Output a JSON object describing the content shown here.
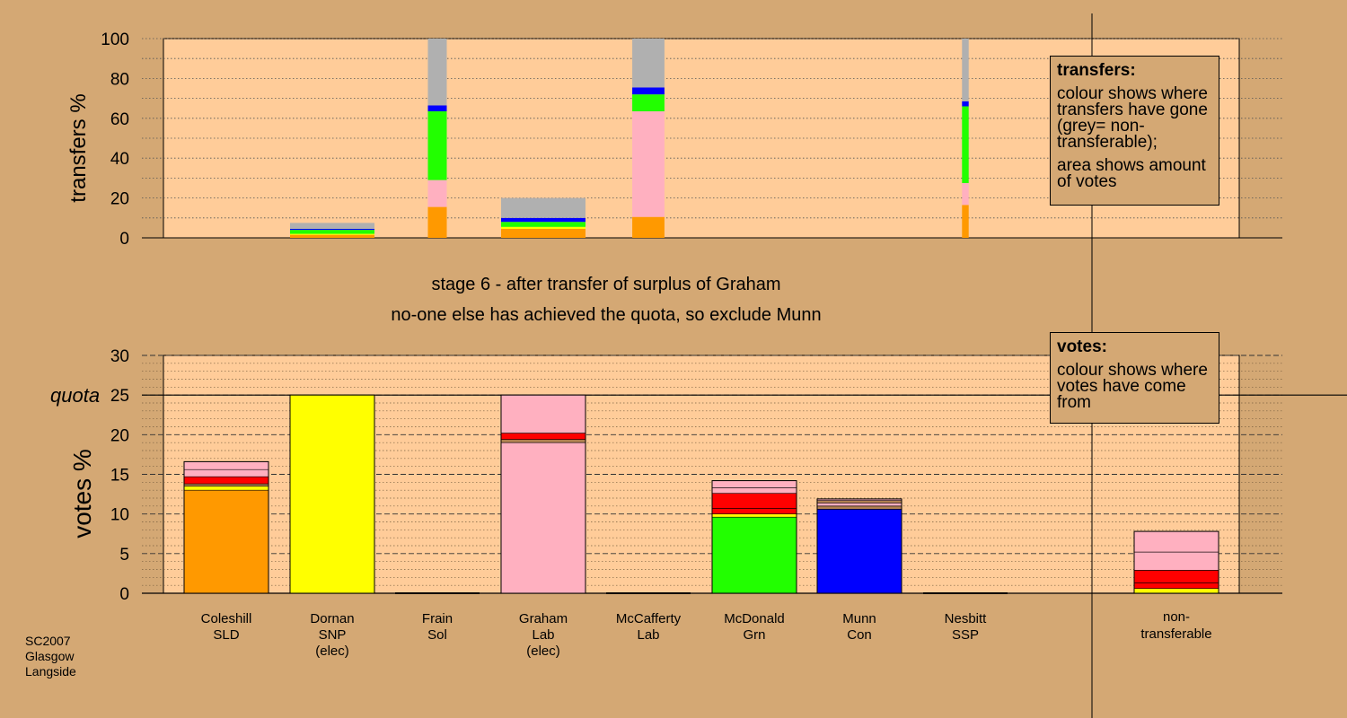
{
  "colors": {
    "background": "#d4a874",
    "plot_area": "#ffcc99",
    "orange": "#ff9900",
    "yellow": "#ffff00",
    "pink": "#ffb0c0",
    "green": "#22ff00",
    "blue": "#0000ff",
    "red": "#ff0000",
    "grey": "#b0b0b0",
    "brown": "#b08050"
  },
  "footer": {
    "line1": "SC2007",
    "line2": "Glasgow",
    "line3": "Langside"
  },
  "stage_title": "stage 6 - after transfer of surplus of Graham",
  "stage_subtitle": "no-one else has achieved the quota, so exclude Munn",
  "legend_transfers": {
    "heading": "transfers:",
    "text1": "colour shows where transfers have gone (grey= non-transferable);",
    "text2": "area shows amount of votes"
  },
  "legend_votes": {
    "heading": "votes:",
    "text1": "colour shows where votes have come from"
  },
  "chart_data": [
    {
      "type": "bar",
      "name": "transfers",
      "ylabel": "transfers %",
      "ylim": [
        0,
        100
      ],
      "yticks": [
        0,
        20,
        40,
        60,
        80,
        100
      ],
      "grid": "dotted",
      "columns": [
        {
          "candidate": "Coleshill",
          "width_pct": 0,
          "segments": []
        },
        {
          "candidate": "Dornan",
          "width_pct": 7.6,
          "segments": [
            {
              "color": "orange",
              "value": 1.5
            },
            {
              "color": "yellow",
              "value": 0.5
            },
            {
              "color": "green",
              "value": 2.0
            },
            {
              "color": "blue",
              "value": 0.5
            },
            {
              "color": "grey",
              "value": 3.0
            }
          ]
        },
        {
          "candidate": "Frain",
          "width_pct": 1.7,
          "segments": [
            {
              "color": "orange",
              "value": 15.5
            },
            {
              "color": "pink",
              "value": 13.5
            },
            {
              "color": "green",
              "value": 34.5
            },
            {
              "color": "blue",
              "value": 3.0
            },
            {
              "color": "grey",
              "value": 33.5
            }
          ]
        },
        {
          "candidate": "Graham",
          "width_pct": 7.6,
          "segments": [
            {
              "color": "orange",
              "value": 4.5
            },
            {
              "color": "yellow",
              "value": 1.0
            },
            {
              "color": "green",
              "value": 2.5
            },
            {
              "color": "blue",
              "value": 2.0
            },
            {
              "color": "grey",
              "value": 10.0
            }
          ]
        },
        {
          "candidate": "McCafferty",
          "width_pct": 2.9,
          "segments": [
            {
              "color": "orange",
              "value": 10.5
            },
            {
              "color": "pink",
              "value": 53.0
            },
            {
              "color": "green",
              "value": 8.5
            },
            {
              "color": "blue",
              "value": 3.5
            },
            {
              "color": "grey",
              "value": 24.5
            }
          ]
        },
        {
          "candidate": "McDonald",
          "width_pct": 0,
          "segments": []
        },
        {
          "candidate": "Munn",
          "width_pct": 0,
          "segments": []
        },
        {
          "candidate": "Nesbitt",
          "width_pct": 0.6,
          "segments": [
            {
              "color": "orange",
              "value": 16.5
            },
            {
              "color": "pink",
              "value": 11.0
            },
            {
              "color": "green",
              "value": 38.5
            },
            {
              "color": "blue",
              "value": 2.5
            },
            {
              "color": "grey",
              "value": 31.5
            }
          ]
        }
      ]
    },
    {
      "type": "bar",
      "name": "votes",
      "ylabel": "votes %",
      "ylim": [
        0,
        30
      ],
      "yticks": [
        0,
        5,
        10,
        15,
        20,
        25,
        30
      ],
      "quota": 25,
      "quota_label": "quota",
      "grid": "dashed",
      "categories": [
        {
          "line1": "Coleshill",
          "line2": "SLD",
          "line3": ""
        },
        {
          "line1": "Dornan",
          "line2": "SNP",
          "line3": "(elec)"
        },
        {
          "line1": "Frain",
          "line2": "Sol",
          "line3": ""
        },
        {
          "line1": "Graham",
          "line2": "Lab",
          "line3": "(elec)"
        },
        {
          "line1": "McCafferty",
          "line2": "Lab",
          "line3": ""
        },
        {
          "line1": "McDonald",
          "line2": "Grn",
          "line3": ""
        },
        {
          "line1": "Munn",
          "line2": "Con",
          "line3": ""
        },
        {
          "line1": "Nesbitt",
          "line2": "SSP",
          "line3": ""
        }
      ],
      "nontransferable_label": {
        "line1": "non-",
        "line2": "transferable"
      },
      "stacks": [
        [
          {
            "color": "orange",
            "value": 13.0
          },
          {
            "color": "yellow",
            "value": 0.5
          },
          {
            "color": "brown",
            "value": 0.3
          },
          {
            "color": "red",
            "value": 0.9
          },
          {
            "color": "pink",
            "value": 0.9
          },
          {
            "color": "pink",
            "value": 1.0
          }
        ],
        [
          {
            "color": "yellow",
            "value": 25.0
          }
        ],
        [],
        [
          {
            "color": "pink",
            "value": 19.0
          },
          {
            "color": "brown",
            "value": 0.4
          },
          {
            "color": "red",
            "value": 0.8
          },
          {
            "color": "pink",
            "value": 4.8
          }
        ],
        [],
        [
          {
            "color": "green",
            "value": 9.6
          },
          {
            "color": "yellow",
            "value": 0.4
          },
          {
            "color": "red",
            "value": 0.7
          },
          {
            "color": "red",
            "value": 1.9
          },
          {
            "color": "pink",
            "value": 0.7
          },
          {
            "color": "pink",
            "value": 0.9
          }
        ],
        [
          {
            "color": "blue",
            "value": 10.6
          },
          {
            "color": "brown",
            "value": 0.4
          },
          {
            "color": "pink",
            "value": 0.4
          },
          {
            "color": "brown",
            "value": 0.3
          },
          {
            "color": "pink",
            "value": 0.2
          }
        ],
        []
      ],
      "nontransferable": [
        {
          "color": "yellow",
          "value": 0.6
        },
        {
          "color": "red",
          "value": 0.7
        },
        {
          "color": "red",
          "value": 1.6
        },
        {
          "color": "pink",
          "value": 2.3
        },
        {
          "color": "pink",
          "value": 2.6
        }
      ]
    }
  ]
}
